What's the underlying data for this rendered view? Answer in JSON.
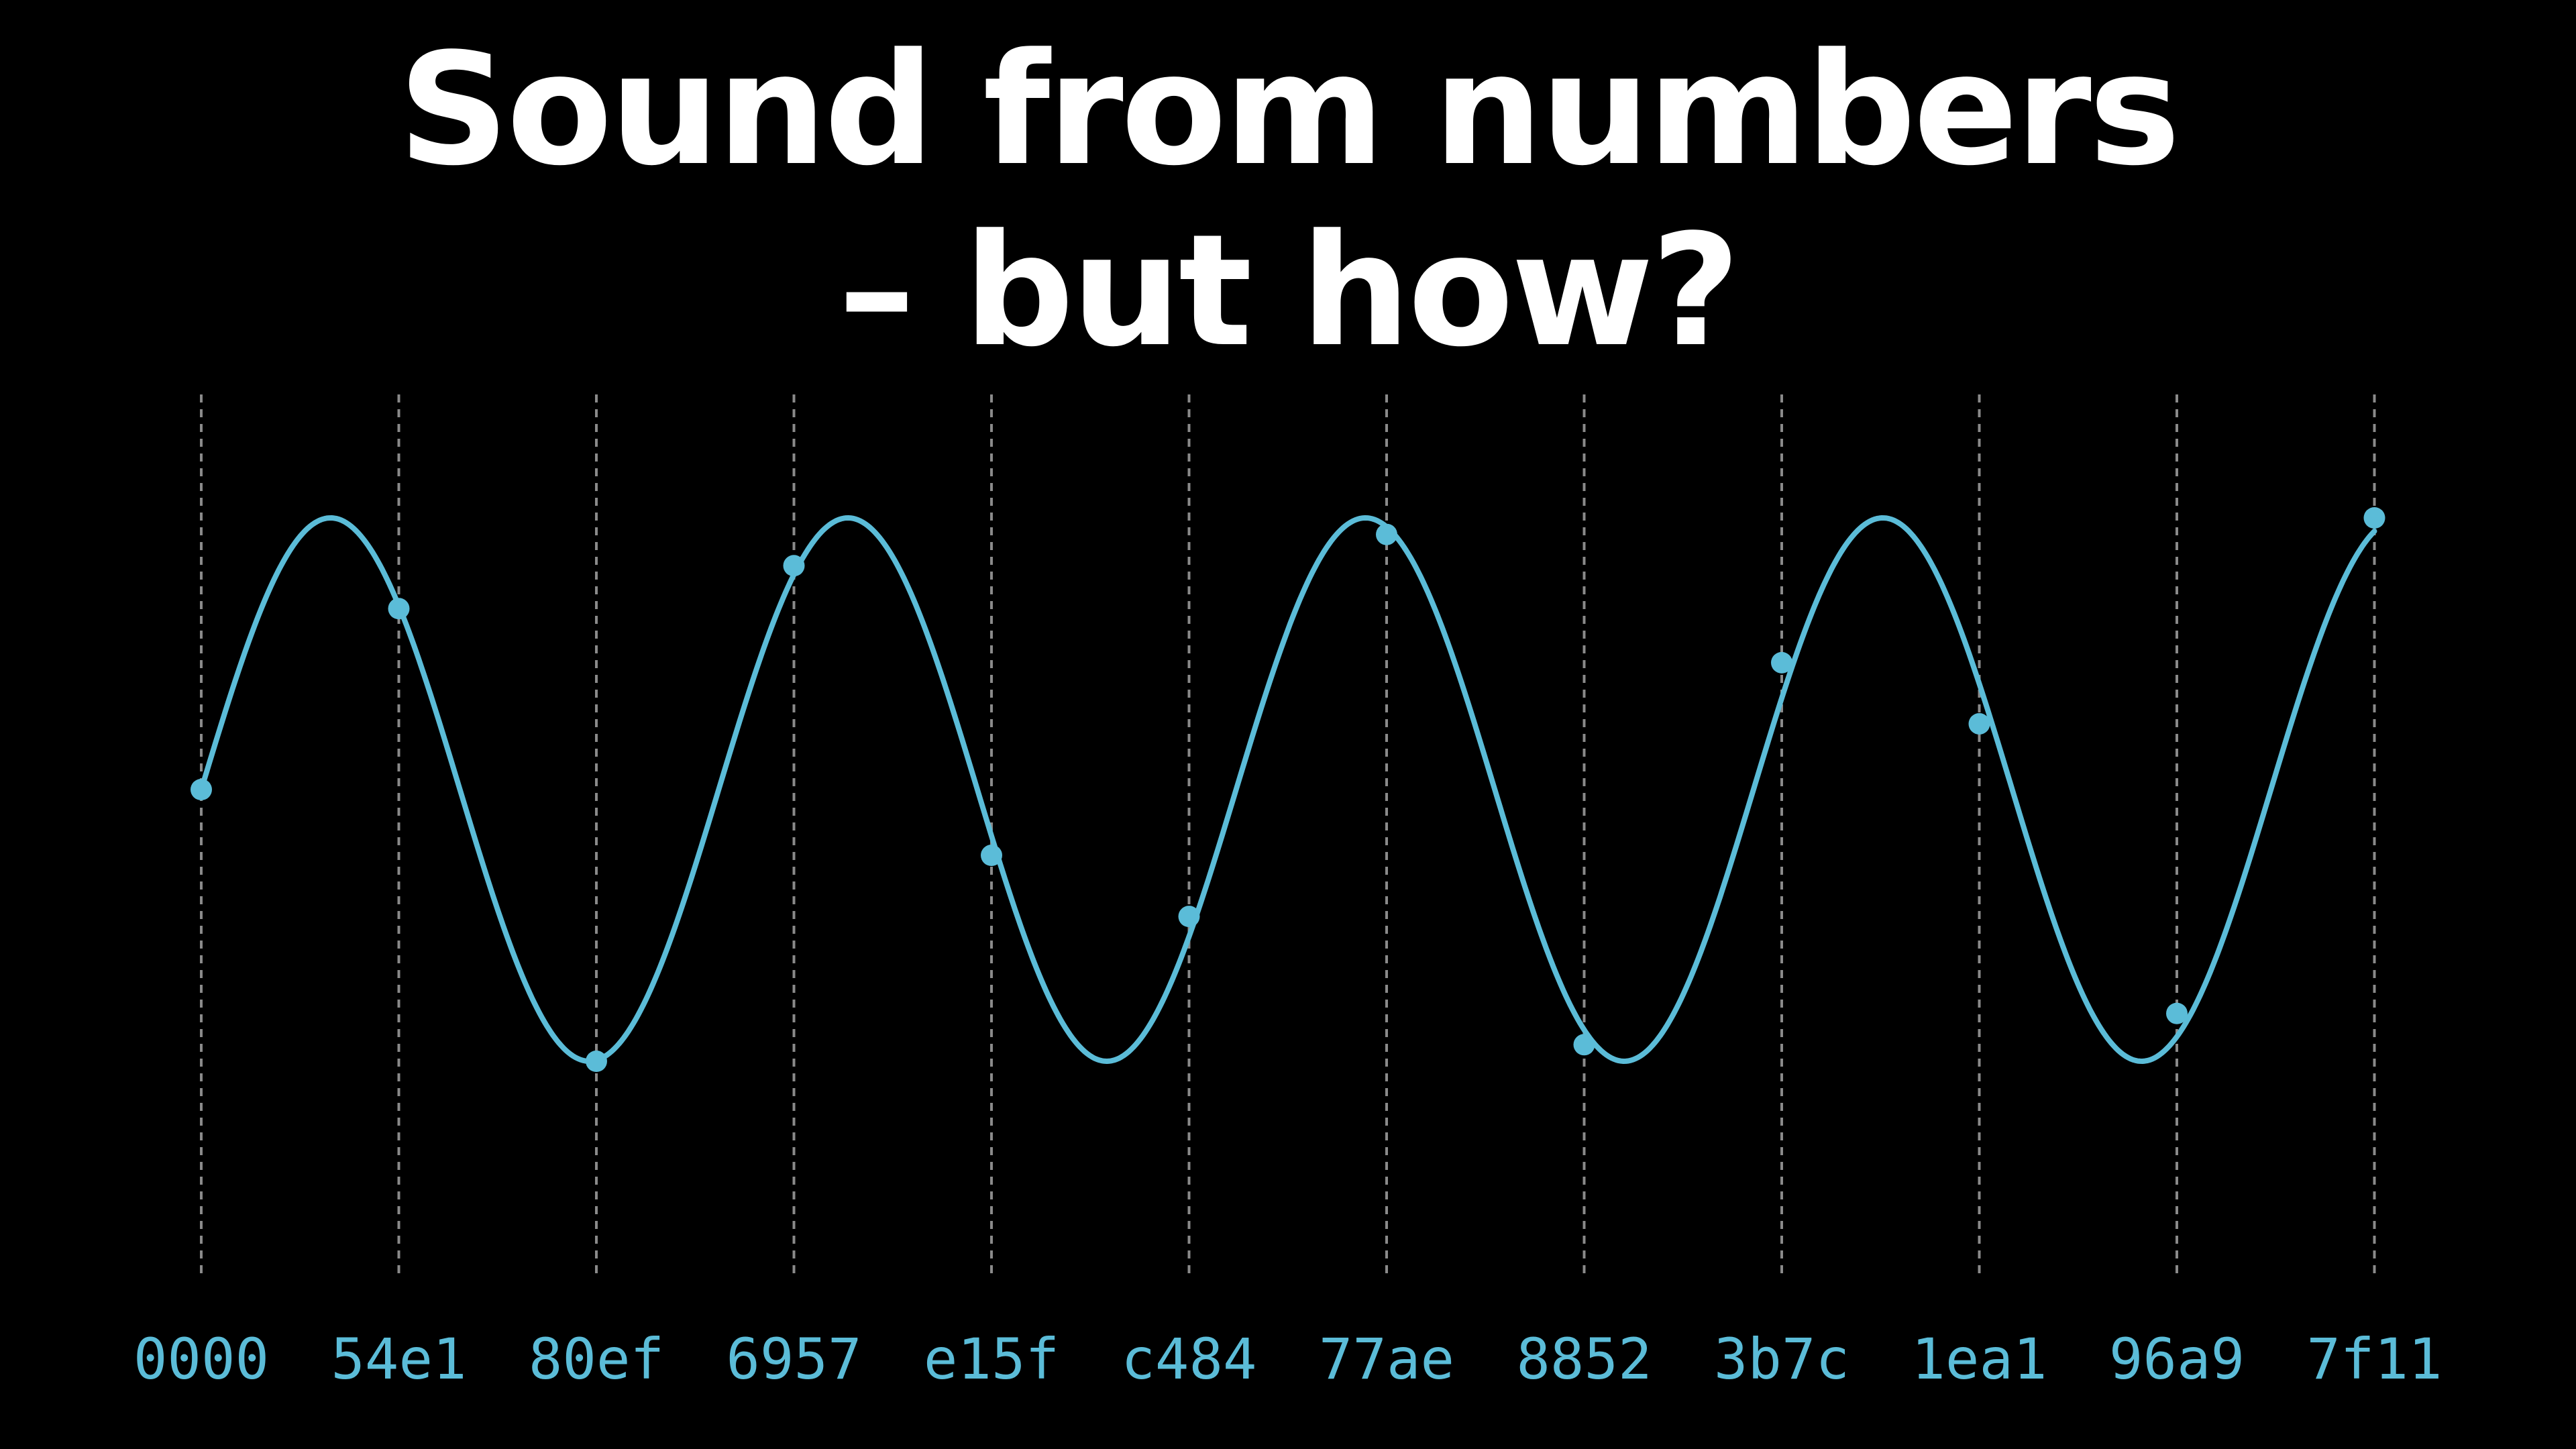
{
  "title": {
    "line1": "Sound from numbers",
    "line2": "– but how?"
  },
  "colors": {
    "background": "#000000",
    "title": "#ffffff",
    "wave": "#5bbcd8",
    "gridline": "#8a8a8a"
  },
  "samples": [
    {
      "label": "0000",
      "level": 0.0
    },
    {
      "label": "54e1",
      "level": 0.666
    },
    {
      "label": "80ef",
      "level": -1.0
    },
    {
      "label": "6957",
      "level": 0.824
    },
    {
      "label": "e15f",
      "level": -0.242
    },
    {
      "label": "c484",
      "level": -0.467
    },
    {
      "label": "77ae",
      "level": 0.939
    },
    {
      "label": "8852",
      "level": -0.939
    },
    {
      "label": "3b7c",
      "level": 0.467
    },
    {
      "label": "1ea1",
      "level": 0.242
    },
    {
      "label": "96a9",
      "level": -0.824
    },
    {
      "label": "7f11",
      "level": 1.0
    }
  ]
}
